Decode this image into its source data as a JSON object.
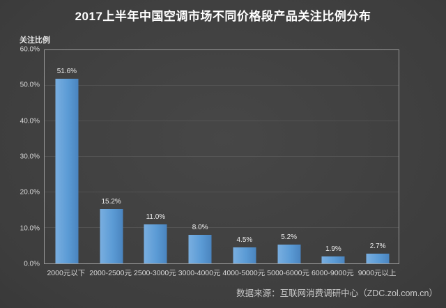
{
  "chart": {
    "title": "2017上半年中国空调市场不同价格段产品关注比例分布",
    "y_axis_title": "关注比例",
    "source": "数据来源：互联网消费调研中心（ZDC.zol.com.cn）"
  },
  "chart_data": {
    "type": "bar",
    "title": "2017上半年中国空调市场不同价格段产品关注比例分布",
    "categories": [
      "2000元以下",
      "2000-2500元",
      "2500-3000元",
      "3000-4000元",
      "4000-5000元",
      "5000-6000元",
      "6000-9000元",
      "9000元以上"
    ],
    "values": [
      51.6,
      15.2,
      11.0,
      8.0,
      4.5,
      5.2,
      1.9,
      2.7
    ],
    "value_labels": [
      "51.6%",
      "15.2%",
      "11.0%",
      "8.0%",
      "4.5%",
      "5.2%",
      "1.9%",
      "2.7%"
    ],
    "xlabel": "",
    "ylabel": "关注比例",
    "ylim": [
      0,
      60
    ],
    "y_ticks": [
      0,
      10,
      20,
      30,
      40,
      50,
      60
    ],
    "y_tick_labels": [
      "0.0%",
      "10.0%",
      "20.0%",
      "30.0%",
      "40.0%",
      "50.0%",
      "60.0%"
    ],
    "grid": true,
    "legend": false
  },
  "colors": {
    "bar_main": "#5b9bd5",
    "bar_light": "#79aee0",
    "bar_dark": "#4a84bf",
    "title_text": "#ffffff",
    "tick_text": "#d9d9d9",
    "value_text": "#ededed",
    "source_text": "#c9c9c9",
    "plot_border": "#9b9b9b"
  }
}
